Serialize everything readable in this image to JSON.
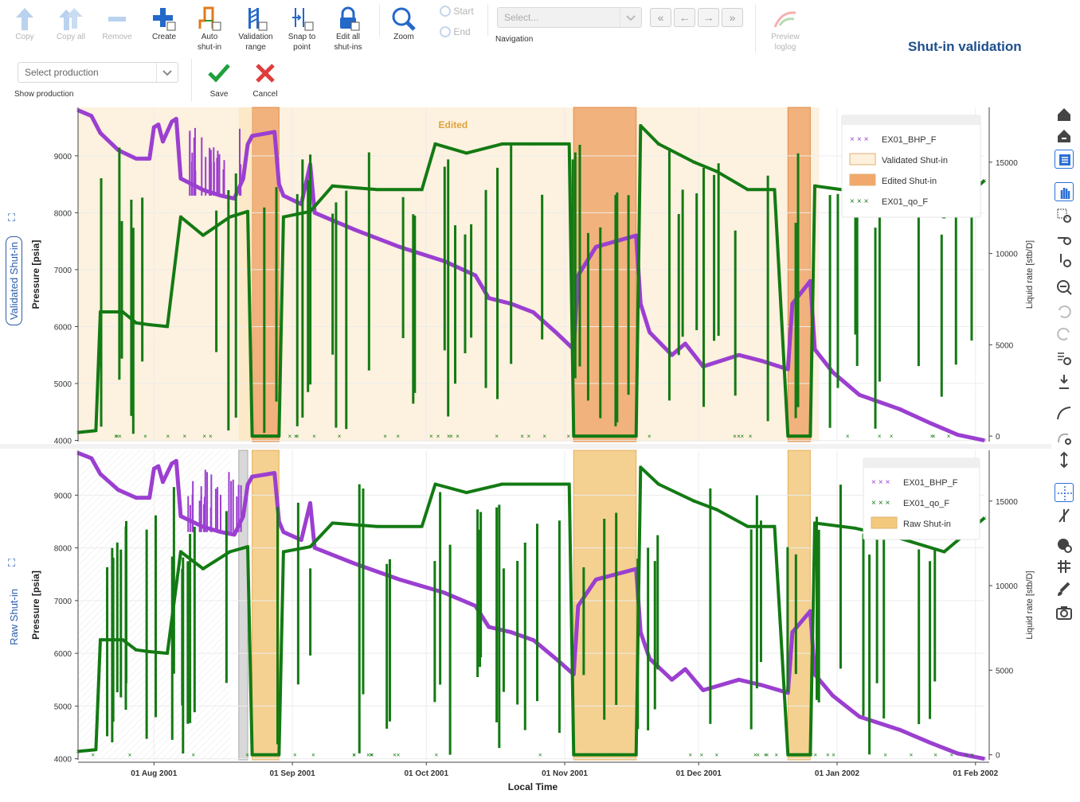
{
  "toolbar": {
    "copy": "Copy",
    "copy_all": "Copy all",
    "remove": "Remove",
    "create": "Create",
    "auto_shutin": [
      "Auto",
      "shut-in"
    ],
    "validation_range": [
      "Validation",
      "range"
    ],
    "snap_to_point": [
      "Snap to",
      "point"
    ],
    "edit_all_shutins": [
      "Edit all",
      "shut-ins"
    ],
    "zoom": "Zoom",
    "start": "Start",
    "end": "End",
    "navigation_placeholder": "Select...",
    "navigation_label": "Navigation",
    "nav_buttons": [
      "«",
      "←",
      "→",
      "»"
    ],
    "preview_loglog": [
      "Preview",
      "loglog"
    ]
  },
  "production": {
    "placeholder": "Select production",
    "label": "Show production",
    "save": "Save",
    "cancel": "Cancel"
  },
  "title": "Shut-in validation",
  "panels": {
    "top_tab": "Validated Shut-in",
    "bottom_tab": "Raw Shut-in"
  },
  "icons": {
    "expand": "expand-icon",
    "right_toolbar": [
      "home-icon",
      "home-reset-icon",
      "list-icon",
      "pan-icon",
      "box-zoom-icon",
      "x-zoom-icon",
      "y-zoom-icon",
      "zoom-out-icon",
      "undo-icon",
      "redo-icon",
      "zoom-fit-icon",
      "reset-axis-icon",
      "curve-icon",
      "lasso-icon",
      "vertical-scale-icon",
      "crosshair-icon",
      "snap-icon",
      "hover-icon",
      "grid-icon",
      "brush-icon",
      "camera-icon"
    ]
  },
  "colors": {
    "bhp": "#9b3fd0",
    "rate": "#137a13",
    "validated": "#fdf0dc",
    "edited": "#f0a86c",
    "raw": "#f3c97e",
    "accent": "#1e4f8c"
  },
  "chart_data": [
    {
      "type": "scatter",
      "title": "",
      "annotation": "Edited",
      "xlabel": "Local Time",
      "ylabel": "Pressure [psia]",
      "y2label": "Liquid rate [stb/D]",
      "x_ticks": [
        "01 Aug 2001",
        "01 Sep 2001",
        "01 Oct 2001",
        "01 Nov 2001",
        "01 Dec 2001",
        "01 Jan 2002",
        "01 Feb 2002"
      ],
      "ylim": [
        3980,
        9850
      ],
      "y_ticks": [
        4000,
        5000,
        6000,
        7000,
        8000,
        9000
      ],
      "y2lim": [
        -300,
        18000
      ],
      "y2_ticks": [
        0,
        5000,
        10000,
        15000
      ],
      "legend_placement": "top-right",
      "legend": [
        "EX01_BHP_F",
        "Validated Shut-in",
        "Edited Shut-in",
        "EX01_qo_F"
      ],
      "regions": [
        {
          "kind": "validated",
          "start": "2001-07-15",
          "end": "2001-12-28"
        },
        {
          "kind": "edited",
          "start": "2001-08-23",
          "end": "2001-08-29"
        },
        {
          "kind": "edited",
          "start": "2001-11-03",
          "end": "2001-11-17"
        },
        {
          "kind": "edited",
          "start": "2001-12-21",
          "end": "2001-12-26"
        }
      ],
      "series": [
        {
          "name": "EX01_BHP_F",
          "axis": "left",
          "points": [
            [
              "2001-07-15",
              9800
            ],
            [
              "2001-07-18",
              9700
            ],
            [
              "2001-07-20",
              9400
            ],
            [
              "2001-07-24",
              9100
            ],
            [
              "2001-07-28",
              8950
            ],
            [
              "2001-07-31",
              8950
            ],
            [
              "2001-08-01",
              9500
            ],
            [
              "2001-08-02",
              9550
            ],
            [
              "2001-08-03",
              9250
            ],
            [
              "2001-08-05",
              9600
            ],
            [
              "2001-08-06",
              9650
            ],
            [
              "2001-08-07",
              8600
            ],
            [
              "2001-08-12",
              8400
            ],
            [
              "2001-08-16",
              8300
            ],
            [
              "2001-08-19",
              8250
            ],
            [
              "2001-08-21",
              8600
            ],
            [
              "2001-08-22",
              9200
            ],
            [
              "2001-08-23",
              9350
            ],
            [
              "2001-08-28",
              9420
            ],
            [
              "2001-08-29",
              8500
            ],
            [
              "2001-08-30",
              8300
            ],
            [
              "2001-09-03",
              8150
            ],
            [
              "2001-09-05",
              8850
            ],
            [
              "2001-09-06",
              8000
            ],
            [
              "2001-09-15",
              7700
            ],
            [
              "2001-09-25",
              7400
            ],
            [
              "2001-10-05",
              7150
            ],
            [
              "2001-10-12",
              6900
            ],
            [
              "2001-10-15",
              6500
            ],
            [
              "2001-10-20",
              6400
            ],
            [
              "2001-10-25",
              6250
            ],
            [
              "2001-10-30",
              5900
            ],
            [
              "2001-11-03",
              5600
            ],
            [
              "2001-11-04",
              6900
            ],
            [
              "2001-11-08",
              7400
            ],
            [
              "2001-11-17",
              7600
            ],
            [
              "2001-11-18",
              6400
            ],
            [
              "2001-11-20",
              5900
            ],
            [
              "2001-11-25",
              5500
            ],
            [
              "2001-11-28",
              5700
            ],
            [
              "2001-12-02",
              5300
            ],
            [
              "2001-12-10",
              5500
            ],
            [
              "2001-12-15",
              5400
            ],
            [
              "2001-12-21",
              5250
            ],
            [
              "2001-12-22",
              6400
            ],
            [
              "2001-12-26",
              6800
            ],
            [
              "2001-12-27",
              5600
            ],
            [
              "2001-12-31",
              5200
            ],
            [
              "2002-01-06",
              4800
            ],
            [
              "2002-01-15",
              4550
            ],
            [
              "2002-01-22",
              4300
            ],
            [
              "2002-01-28",
              4100
            ],
            [
              "2002-02-03",
              4000
            ]
          ]
        },
        {
          "name": "EX01_qo_F",
          "axis": "right",
          "points": [
            [
              "2001-07-15",
              200
            ],
            [
              "2001-07-19",
              300
            ],
            [
              "2001-07-20",
              6800
            ],
            [
              "2001-07-25",
              6800
            ],
            [
              "2001-07-28",
              6200
            ],
            [
              "2001-07-31",
              6100
            ],
            [
              "2001-08-04",
              6000
            ],
            [
              "2001-08-07",
              12000
            ],
            [
              "2001-08-12",
              11000
            ],
            [
              "2001-08-18",
              12000
            ],
            [
              "2001-08-22",
              12300
            ],
            [
              "2001-08-23",
              0
            ],
            [
              "2001-08-29",
              0
            ],
            [
              "2001-08-30",
              12000
            ],
            [
              "2001-09-05",
              12300
            ],
            [
              "2001-09-10",
              13700
            ],
            [
              "2001-09-20",
              13500
            ],
            [
              "2001-09-30",
              13500
            ],
            [
              "2001-10-03",
              16000
            ],
            [
              "2001-10-10",
              15500
            ],
            [
              "2001-10-18",
              16000
            ],
            [
              "2001-10-25",
              16000
            ],
            [
              "2001-11-02",
              16000
            ],
            [
              "2001-11-03",
              0
            ],
            [
              "2001-11-17",
              0
            ],
            [
              "2001-11-18",
              17000
            ],
            [
              "2001-11-22",
              16000
            ],
            [
              "2001-11-30",
              15000
            ],
            [
              "2001-12-05",
              14500
            ],
            [
              "2001-12-12",
              13500
            ],
            [
              "2001-12-18",
              13500
            ],
            [
              "2001-12-21",
              0
            ],
            [
              "2001-12-26",
              0
            ],
            [
              "2001-12-27",
              13700
            ],
            [
              "2002-01-05",
              13400
            ],
            [
              "2002-01-15",
              12800
            ],
            [
              "2002-01-25",
              12000
            ],
            [
              "2002-02-03",
              14000
            ]
          ]
        }
      ]
    },
    {
      "type": "scatter",
      "title": "",
      "xlabel": "Local Time",
      "ylabel": "Pressure [psia]",
      "y2label": "Liquid rate [stb/D]",
      "x_ticks": [
        "01 Aug 2001",
        "01 Sep 2001",
        "01 Oct 2001",
        "01 Nov 2001",
        "01 Dec 2001",
        "01 Jan 2002",
        "01 Feb 2002"
      ],
      "ylim": [
        3980,
        9850
      ],
      "y_ticks": [
        4000,
        5000,
        6000,
        7000,
        8000,
        9000
      ],
      "y2lim": [
        -300,
        18000
      ],
      "y2_ticks": [
        0,
        5000,
        10000,
        15000
      ],
      "legend_placement": "top-right",
      "legend": [
        "EX01_BHP_F",
        "EX01_qo_F",
        "Raw Shut-in"
      ],
      "regions": [
        {
          "kind": "raw",
          "start": "2001-08-23",
          "end": "2001-08-29"
        },
        {
          "kind": "raw",
          "start": "2001-11-03",
          "end": "2001-11-17"
        },
        {
          "kind": "raw",
          "start": "2001-12-21",
          "end": "2001-12-26"
        }
      ],
      "series_ref": "same as panel 1"
    }
  ]
}
